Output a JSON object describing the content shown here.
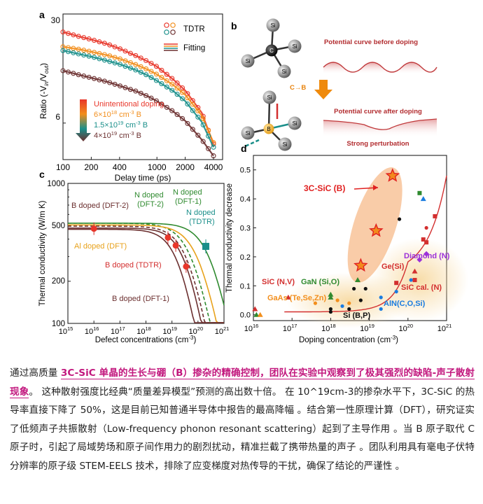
{
  "panel_a": {
    "letter": "a",
    "ylabel": "Ratio (-V",
    "ylabel_sub1": "in",
    "ylabel_mid": "/V",
    "ylabel_sub2": "out",
    "ylabel_end": ")",
    "xlabel": "Delay time (ps)",
    "yticks": [
      "30",
      "6"
    ],
    "xticks": [
      "100",
      "200",
      "400",
      "1000",
      "2000",
      "4000"
    ],
    "legend_tdtr": "TDTR",
    "legend_fitting": "Fitting",
    "doping_title": "Unintentional doping",
    "doping_1": "6×10",
    "doping_1_exp": "18",
    "doping_1_unit": " cm",
    "doping_1_unit_exp": "-3",
    "doping_1_el": " B",
    "doping_2": "1.5×10",
    "doping_2_exp": "19",
    "doping_2_unit": " cm",
    "doping_2_unit_exp": "-3",
    "doping_2_el": " B",
    "doping_3": "4×10",
    "doping_3_exp": "19",
    "doping_3_unit": " cm",
    "doping_3_unit_exp": "-3",
    "doping_3_el": " B",
    "colors": {
      "red": "#e8362a",
      "orange": "#f28e1c",
      "teal": "#1a8f8a",
      "dark": "#6b2f2f"
    }
  },
  "panel_b": {
    "letter": "b",
    "atom_si": "Si",
    "atom_c": "C",
    "atom_b": "B",
    "arrow_label": "C→B",
    "curve_before": "Potential curve before doping",
    "curve_after": "Potential curve after doping",
    "perturbation": "Strong perturbation"
  },
  "panel_c": {
    "letter": "c",
    "ylabel": "Thermal conductivity (W/m K)",
    "xlabel": "Defect concentrations (cm",
    "xlabel_exp": "-3",
    "xlabel_end": ")",
    "yticks": [
      "1000",
      "500",
      "200",
      "100"
    ],
    "xtick_exps": [
      "15",
      "16",
      "17",
      "18",
      "19",
      "20",
      "21"
    ],
    "lbl_b_dft2": "B doped (DFT-2)",
    "lbl_n_dft2_l1": "N doped",
    "lbl_n_dft2_l2": "(DFT-2)",
    "lbl_n_dft1_l1": "N doped",
    "lbl_n_dft1_l2": "(DFT-1)",
    "lbl_n_tdtr_l1": "N doped",
    "lbl_n_tdtr_l2": "(TDTR)",
    "lbl_al_dft": "Al doped (DFT)",
    "lbl_b_tdtr": "B doped (TDTR)",
    "lbl_b_dft1": "B doped (DFT-1)"
  },
  "panel_d": {
    "letter": "d",
    "ylabel": "Thermal conductivity decrease",
    "xlabel": "Doping concentration (cm",
    "xlabel_exp": "-3",
    "xlabel_end": ")",
    "yticks": [
      "0.0",
      "0.1",
      "0.2",
      "0.3",
      "0.4",
      "0.5"
    ],
    "xtick_exps": [
      "16",
      "17",
      "18",
      "19",
      "20",
      "21"
    ],
    "lbl_3csic": "3C-SiC (B)",
    "lbl_sic_nv": "SiC (N,V)",
    "lbl_gan": "GaN (Si,O)",
    "lbl_gaas": "GaAs (Te,Se,Zn)",
    "lbl_si": "Si (B,P)",
    "lbl_ge": "Ge(Si)",
    "lbl_diamond": "Diamond (N)",
    "lbl_sic_cal": "SiC cal. (N)",
    "lbl_aln": "AlN(C,O,Si)"
  },
  "caption": {
    "p1": "通过高质量 ",
    "highlight": "3C-SiC 单晶的生长与硼（B）掺杂的精确控制，团队在实验中观察到了极其强烈的缺陷-声子散射现象",
    "p2": "。 这种散射强度比经典“质量差异模型”预测的高出数十倍。 在 10^19cm-3的掺杂水平下，3C-SiC 的热导率直接下降了 50%，这是目前已知普通半导体中报告的最高降幅 。结合第一性原理计算（DFT），研究证实了低频声子共振散射（Low-frequency phonon resonant scattering）起到了主导作用 。当 B 原子取代 C 原子时，引起了局域势场和原子间作用力的剧烈扰动，精准拦截了携带热量的声子 。团队利用具有毫电子伏特分辨率的原子级 STEM-EELS 技术，排除了应变梯度对热传导的干扰，确保了结论的严谨性 。"
  },
  "chart_data": [
    {
      "type": "scatter",
      "panel": "a",
      "xlabel": "Delay time (ps)",
      "ylabel": "Ratio (-Vin/Vout)",
      "x_scale": "log",
      "xlim": [
        100,
        5000
      ],
      "y_scale": "log",
      "ylim": [
        3.5,
        30
      ],
      "series": [
        {
          "name": "Unintentional doping",
          "x": [
            100,
            150,
            200,
            300,
            400,
            600,
            800,
            1000,
            1500,
            2000,
            3000,
            4000
          ],
          "y": [
            23,
            21.5,
            20.6,
            19.2,
            18,
            16.2,
            14.9,
            13.8,
            11.4,
            9.7,
            7.0,
            4.4
          ]
        },
        {
          "name": "6×10^18 cm-3 B",
          "x": [
            100,
            150,
            200,
            300,
            400,
            600,
            800,
            1000,
            1500,
            2000,
            3000,
            4000
          ],
          "y": [
            18.5,
            17.8,
            17.2,
            16.3,
            15.5,
            14.2,
            13.2,
            12.3,
            10.5,
            9.1,
            6.7,
            4.5
          ]
        },
        {
          "name": "1.5×10^19 cm-3 B",
          "x": [
            100,
            150,
            200,
            300,
            400,
            600,
            800,
            1000,
            1500,
            2000,
            3000,
            4000
          ],
          "y": [
            17.5,
            16.6,
            16,
            15,
            14.3,
            13.1,
            12.1,
            11.2,
            9.6,
            8.3,
            6.1,
            4.2
          ]
        },
        {
          "name": "4×10^19 cm-3 B",
          "x": [
            100,
            150,
            200,
            300,
            400,
            600,
            800,
            1000,
            1500,
            2000,
            3000,
            4000
          ],
          "y": [
            13,
            12.2,
            11.7,
            11,
            10.4,
            9.6,
            8.9,
            8.3,
            7.1,
            6.2,
            4.7,
            3.7
          ]
        }
      ]
    },
    {
      "type": "line",
      "panel": "c",
      "xlabel": "Defect concentrations (cm-3)",
      "ylabel": "Thermal conductivity (W/m K)",
      "x_scale": "log",
      "xlim": [
        1000000000000000.0,
        1e+21
      ],
      "y_scale": "log",
      "ylim": [
        100,
        1000
      ],
      "points": [
        {
          "name": "B doped (TDTR)",
          "x": [
            1e+16,
            7e+18,
            1.4e+19,
            3.5e+19
          ],
          "y": [
            475,
            410,
            360,
            255
          ]
        },
        {
          "name": "N doped (TDTR)",
          "x": [
            2e+20
          ],
          "y": [
            355
          ]
        }
      ]
    },
    {
      "type": "scatter",
      "panel": "d",
      "xlabel": "Doping concentration (cm-3)",
      "ylabel": "Thermal conductivity decrease",
      "x_scale": "log",
      "xlim": [
        1e+16,
        1e+21
      ],
      "ylim": [
        0,
        0.55
      ],
      "series": [
        {
          "name": "3C-SiC (B)",
          "x": [
            6e+18,
            1.5e+19,
            4e+19
          ],
          "y": [
            0.17,
            0.29,
            0.48
          ]
        }
      ]
    }
  ]
}
